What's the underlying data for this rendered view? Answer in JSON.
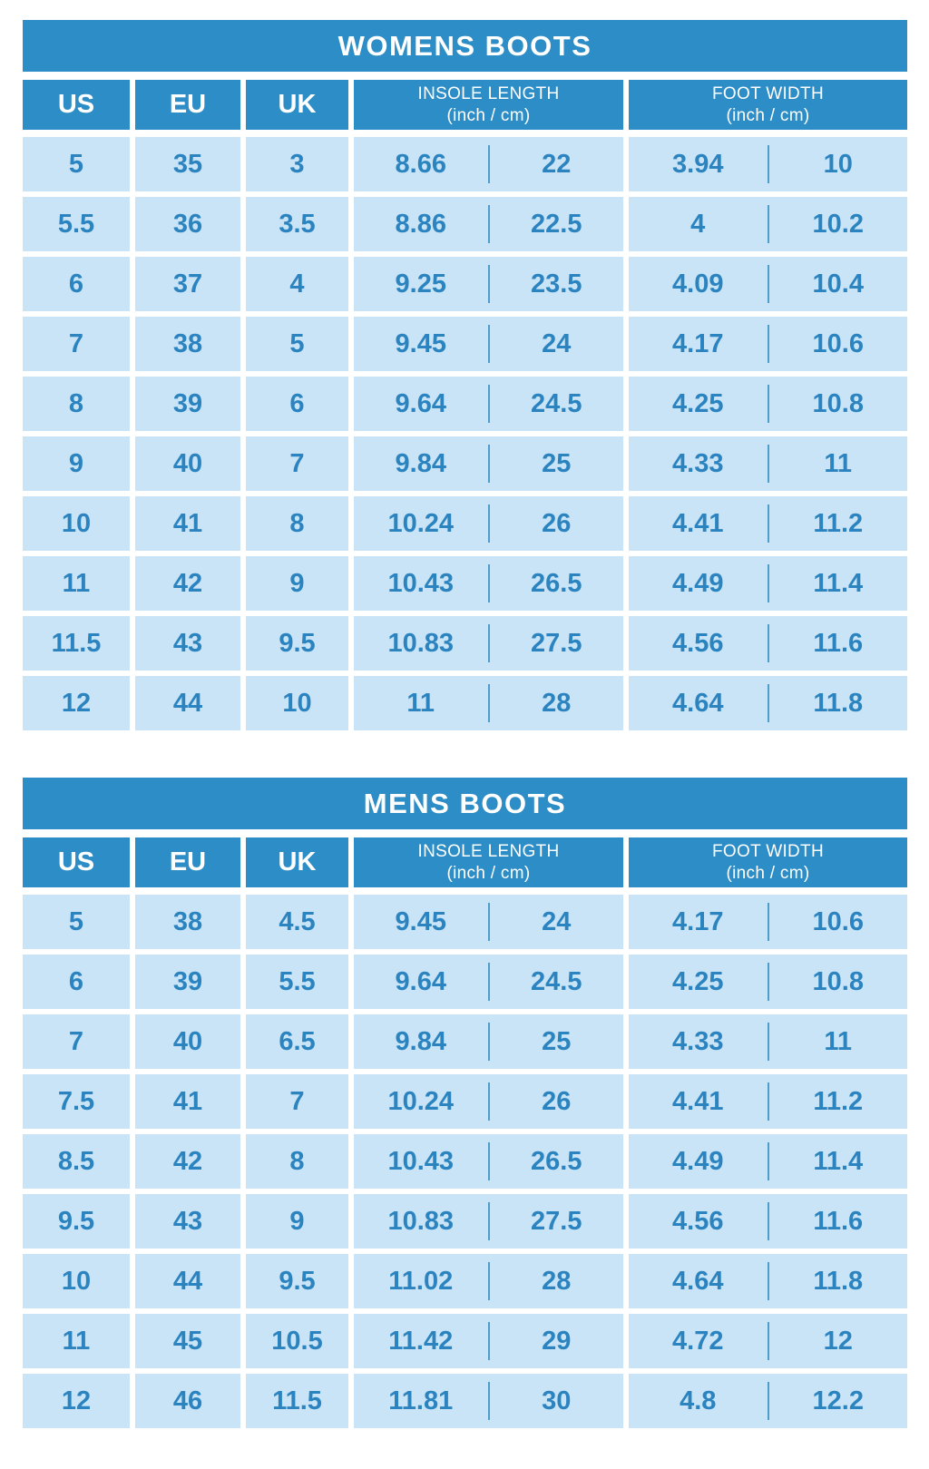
{
  "colors": {
    "banner_bg": "#2D8DC6",
    "banner_text": "#FFFFFF",
    "cell_bg": "#C9E4F6",
    "cell_text": "#2B84C0",
    "divider": "#4F9DCB"
  },
  "chart_data": [
    {
      "type": "table",
      "title": "WOMENS BOOTS",
      "headers": {
        "us": "US",
        "eu": "EU",
        "uk": "UK",
        "insole_title": "INSOLE LENGTH",
        "insole_unit": "(inch / cm)",
        "width_title": "FOOT WIDTH",
        "width_unit": "(inch / cm)"
      },
      "column_keys": [
        "US",
        "EU",
        "UK",
        "INSOLE LENGTH inch",
        "INSOLE LENGTH cm",
        "FOOT WIDTH inch",
        "FOOT WIDTH cm"
      ],
      "rows": [
        [
          "5",
          "35",
          "3",
          "8.66",
          "22",
          "3.94",
          "10"
        ],
        [
          "5.5",
          "36",
          "3.5",
          "8.86",
          "22.5",
          "4",
          "10.2"
        ],
        [
          "6",
          "37",
          "4",
          "9.25",
          "23.5",
          "4.09",
          "10.4"
        ],
        [
          "7",
          "38",
          "5",
          "9.45",
          "24",
          "4.17",
          "10.6"
        ],
        [
          "8",
          "39",
          "6",
          "9.64",
          "24.5",
          "4.25",
          "10.8"
        ],
        [
          "9",
          "40",
          "7",
          "9.84",
          "25",
          "4.33",
          "11"
        ],
        [
          "10",
          "41",
          "8",
          "10.24",
          "26",
          "4.41",
          "11.2"
        ],
        [
          "11",
          "42",
          "9",
          "10.43",
          "26.5",
          "4.49",
          "11.4"
        ],
        [
          "11.5",
          "43",
          "9.5",
          "10.83",
          "27.5",
          "4.56",
          "11.6"
        ],
        [
          "12",
          "44",
          "10",
          "11",
          "28",
          "4.64",
          "11.8"
        ]
      ]
    },
    {
      "type": "table",
      "title": "MENS BOOTS",
      "headers": {
        "us": "US",
        "eu": "EU",
        "uk": "UK",
        "insole_title": "INSOLE LENGTH",
        "insole_unit": "(inch / cm)",
        "width_title": "FOOT WIDTH",
        "width_unit": "(inch / cm)"
      },
      "column_keys": [
        "US",
        "EU",
        "UK",
        "INSOLE LENGTH inch",
        "INSOLE LENGTH cm",
        "FOOT WIDTH inch",
        "FOOT WIDTH cm"
      ],
      "rows": [
        [
          "5",
          "38",
          "4.5",
          "9.45",
          "24",
          "4.17",
          "10.6"
        ],
        [
          "6",
          "39",
          "5.5",
          "9.64",
          "24.5",
          "4.25",
          "10.8"
        ],
        [
          "7",
          "40",
          "6.5",
          "9.84",
          "25",
          "4.33",
          "11"
        ],
        [
          "7.5",
          "41",
          "7",
          "10.24",
          "26",
          "4.41",
          "11.2"
        ],
        [
          "8.5",
          "42",
          "8",
          "10.43",
          "26.5",
          "4.49",
          "11.4"
        ],
        [
          "9.5",
          "43",
          "9",
          "10.83",
          "27.5",
          "4.56",
          "11.6"
        ],
        [
          "10",
          "44",
          "9.5",
          "11.02",
          "28",
          "4.64",
          "11.8"
        ],
        [
          "11",
          "45",
          "10.5",
          "11.42",
          "29",
          "4.72",
          "12"
        ],
        [
          "12",
          "46",
          "11.5",
          "11.81",
          "30",
          "4.8",
          "12.2"
        ]
      ]
    }
  ]
}
